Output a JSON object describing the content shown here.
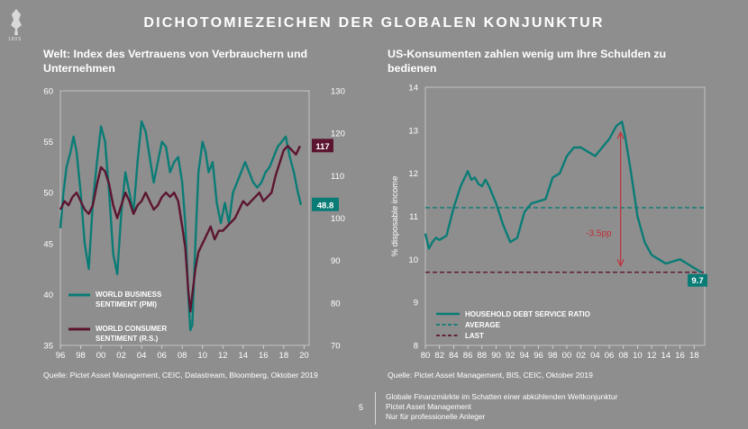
{
  "header": {
    "title": "DICHOTOMIEZEICHEN DER GLOBALEN KONJUNKTUR",
    "logo_text": "1805"
  },
  "left": {
    "title_line1": "Welt: Index des Vertrauens von Verbrauchern und",
    "title_line2": "Unternehmen",
    "source": "Quelle: Pictet Asset Management, CEIC, Datastream, Bloomberg, Oktober 2019"
  },
  "right": {
    "title_line1": "US-Konsumenten zahlen wenig um Ihre Schulden zu",
    "title_line2": "bedienen",
    "source": "Quelle: Pictet Asset Management, BIS, CEIC, Oktober 2019"
  },
  "footer": {
    "page_number": "5",
    "line1": "Globale Finanzmärkte im Schatten einer abkühlenden Weltkonjunktur",
    "line2": "Pictet Asset Management",
    "line3": "Nur für professionelle Anleger"
  },
  "colors": {
    "teal": "#0a7c76",
    "maroon": "#5c1530",
    "red_arrow": "#c0303a",
    "background": "#8e8e8e"
  },
  "chart_data": [
    {
      "type": "line",
      "xlim": [
        1996,
        2020.5
      ],
      "x_ticks": [
        "96",
        "98",
        "00",
        "02",
        "04",
        "06",
        "08",
        "10",
        "12",
        "14",
        "16",
        "18",
        "20"
      ],
      "ylim_left": [
        35,
        60
      ],
      "y_ticks_left": [
        "35",
        "40",
        "45",
        "50",
        "55",
        "60"
      ],
      "ylim_right": [
        70,
        130
      ],
      "y_ticks_right": [
        "70",
        "80",
        "90",
        "100",
        "110",
        "120",
        "130"
      ],
      "series": [
        {
          "name": "WORLD BUSINESS SENTIMENT (PMI)",
          "axis": "left",
          "color": "#0a7c76",
          "end_label": "48.8",
          "x": [
            1996.0,
            1996.3,
            1996.6,
            1997.0,
            1997.3,
            1997.6,
            1998.0,
            1998.4,
            1998.8,
            1999.2,
            1999.6,
            2000.0,
            2000.4,
            2000.8,
            2001.2,
            2001.6,
            2002.0,
            2002.4,
            2002.8,
            2003.2,
            2003.6,
            2004.0,
            2004.4,
            2004.8,
            2005.2,
            2005.6,
            2006.0,
            2006.4,
            2006.8,
            2007.2,
            2007.6,
            2008.0,
            2008.3,
            2008.6,
            2008.8,
            2009.0,
            2009.3,
            2009.6,
            2010.0,
            2010.3,
            2010.6,
            2011.0,
            2011.4,
            2011.8,
            2012.2,
            2012.6,
            2013.0,
            2013.4,
            2013.8,
            2014.2,
            2014.6,
            2015.0,
            2015.4,
            2015.8,
            2016.2,
            2016.6,
            2017.0,
            2017.4,
            2017.8,
            2018.2,
            2018.6,
            2019.0,
            2019.4,
            2019.7
          ],
          "values": [
            46.5,
            50,
            52.5,
            54,
            55.5,
            54,
            50,
            45,
            42.5,
            49,
            53,
            56.5,
            55,
            50,
            44,
            42,
            48,
            52,
            50,
            48,
            53,
            57,
            56,
            53.5,
            51,
            53,
            55,
            54.5,
            52,
            53,
            53.5,
            51,
            47,
            40,
            36.5,
            37,
            45,
            52,
            55,
            54,
            52,
            53,
            49,
            47,
            49,
            47,
            50,
            51,
            52,
            53,
            52,
            51,
            50.5,
            51,
            52,
            52.5,
            53.5,
            54.5,
            55,
            55.5,
            53.5,
            52,
            50,
            48.8
          ]
        },
        {
          "name": "WORLD CONSUMER SENTIMENT (R.S.)",
          "axis": "right",
          "color": "#5c1530",
          "end_label": "117",
          "x": [
            1996.0,
            1996.4,
            1996.8,
            1997.2,
            1997.6,
            1998.0,
            1998.4,
            1998.8,
            1999.2,
            1999.6,
            2000.0,
            2000.4,
            2000.8,
            2001.2,
            2001.6,
            2002.0,
            2002.4,
            2002.8,
            2003.2,
            2003.6,
            2004.0,
            2004.4,
            2004.8,
            2005.2,
            2005.6,
            2006.0,
            2006.4,
            2006.8,
            2007.2,
            2007.6,
            2008.0,
            2008.3,
            2008.6,
            2008.8,
            2009.0,
            2009.3,
            2009.6,
            2010.0,
            2010.4,
            2010.8,
            2011.2,
            2011.6,
            2012.0,
            2012.4,
            2012.8,
            2013.2,
            2013.6,
            2014.0,
            2014.4,
            2014.8,
            2015.2,
            2015.6,
            2016.0,
            2016.4,
            2016.8,
            2017.2,
            2017.6,
            2018.0,
            2018.4,
            2018.8,
            2019.2,
            2019.6
          ],
          "values": [
            102,
            104,
            103,
            105,
            106,
            104,
            102,
            101,
            103,
            108,
            112,
            111,
            108,
            103,
            100,
            103,
            106,
            104,
            101,
            103,
            104,
            106,
            104,
            102,
            103,
            105,
            106,
            105,
            106,
            104,
            98,
            93,
            83,
            78,
            82,
            88,
            92,
            94,
            96,
            98,
            95,
            97,
            97,
            98,
            99,
            100,
            102,
            104,
            103,
            104,
            105,
            106,
            104,
            105,
            106,
            110,
            113,
            116,
            117,
            116,
            115,
            117
          ]
        }
      ]
    },
    {
      "type": "line",
      "xlim": [
        1980,
        2019.5
      ],
      "x_ticks": [
        "80",
        "82",
        "84",
        "86",
        "88",
        "90",
        "92",
        "94",
        "96",
        "98",
        "00",
        "02",
        "04",
        "06",
        "08",
        "10",
        "12",
        "14",
        "16",
        "18"
      ],
      "ylim": [
        8,
        14
      ],
      "y_ticks": [
        "8",
        "9",
        "10",
        "11",
        "12",
        "13",
        "14"
      ],
      "ylabel": "% disposable income",
      "annotation": "-3.5pp",
      "series": [
        {
          "name": "HOUSEHOLD DEBT SERVICE RATIO",
          "color": "#0a7c76",
          "end_label": "9.7",
          "x": [
            1980.0,
            1980.5,
            1981.0,
            1981.5,
            1982.0,
            1983.0,
            1984.0,
            1985.0,
            1986.0,
            1986.5,
            1987.0,
            1987.5,
            1988.0,
            1988.5,
            1989.0,
            1990.0,
            1991.0,
            1992.0,
            1993.0,
            1994.0,
            1995.0,
            1996.0,
            1997.0,
            1998.0,
            1999.0,
            2000.0,
            2001.0,
            2002.0,
            2003.0,
            2004.0,
            2005.0,
            2006.0,
            2007.0,
            2007.8,
            2008.3,
            2009.0,
            2010.0,
            2011.0,
            2012.0,
            2013.0,
            2014.0,
            2015.0,
            2016.0,
            2017.0,
            2018.0,
            2019.0
          ],
          "values": [
            10.6,
            10.25,
            10.4,
            10.5,
            10.45,
            10.55,
            11.2,
            11.7,
            12.05,
            11.85,
            11.9,
            11.75,
            11.7,
            11.85,
            11.7,
            11.3,
            10.8,
            10.4,
            10.5,
            11.1,
            11.3,
            11.35,
            11.4,
            11.9,
            12.0,
            12.4,
            12.6,
            12.6,
            12.5,
            12.4,
            12.6,
            12.8,
            13.1,
            13.2,
            12.8,
            12.1,
            11.0,
            10.4,
            10.1,
            10.0,
            9.9,
            9.95,
            10.0,
            9.9,
            9.8,
            9.7
          ]
        },
        {
          "name": "AVERAGE",
          "color": "#0a7c76",
          "dashed": true,
          "value": 11.2
        },
        {
          "name": "LAST",
          "color": "#5c1530",
          "dashed": true,
          "value": 9.7
        }
      ]
    }
  ]
}
